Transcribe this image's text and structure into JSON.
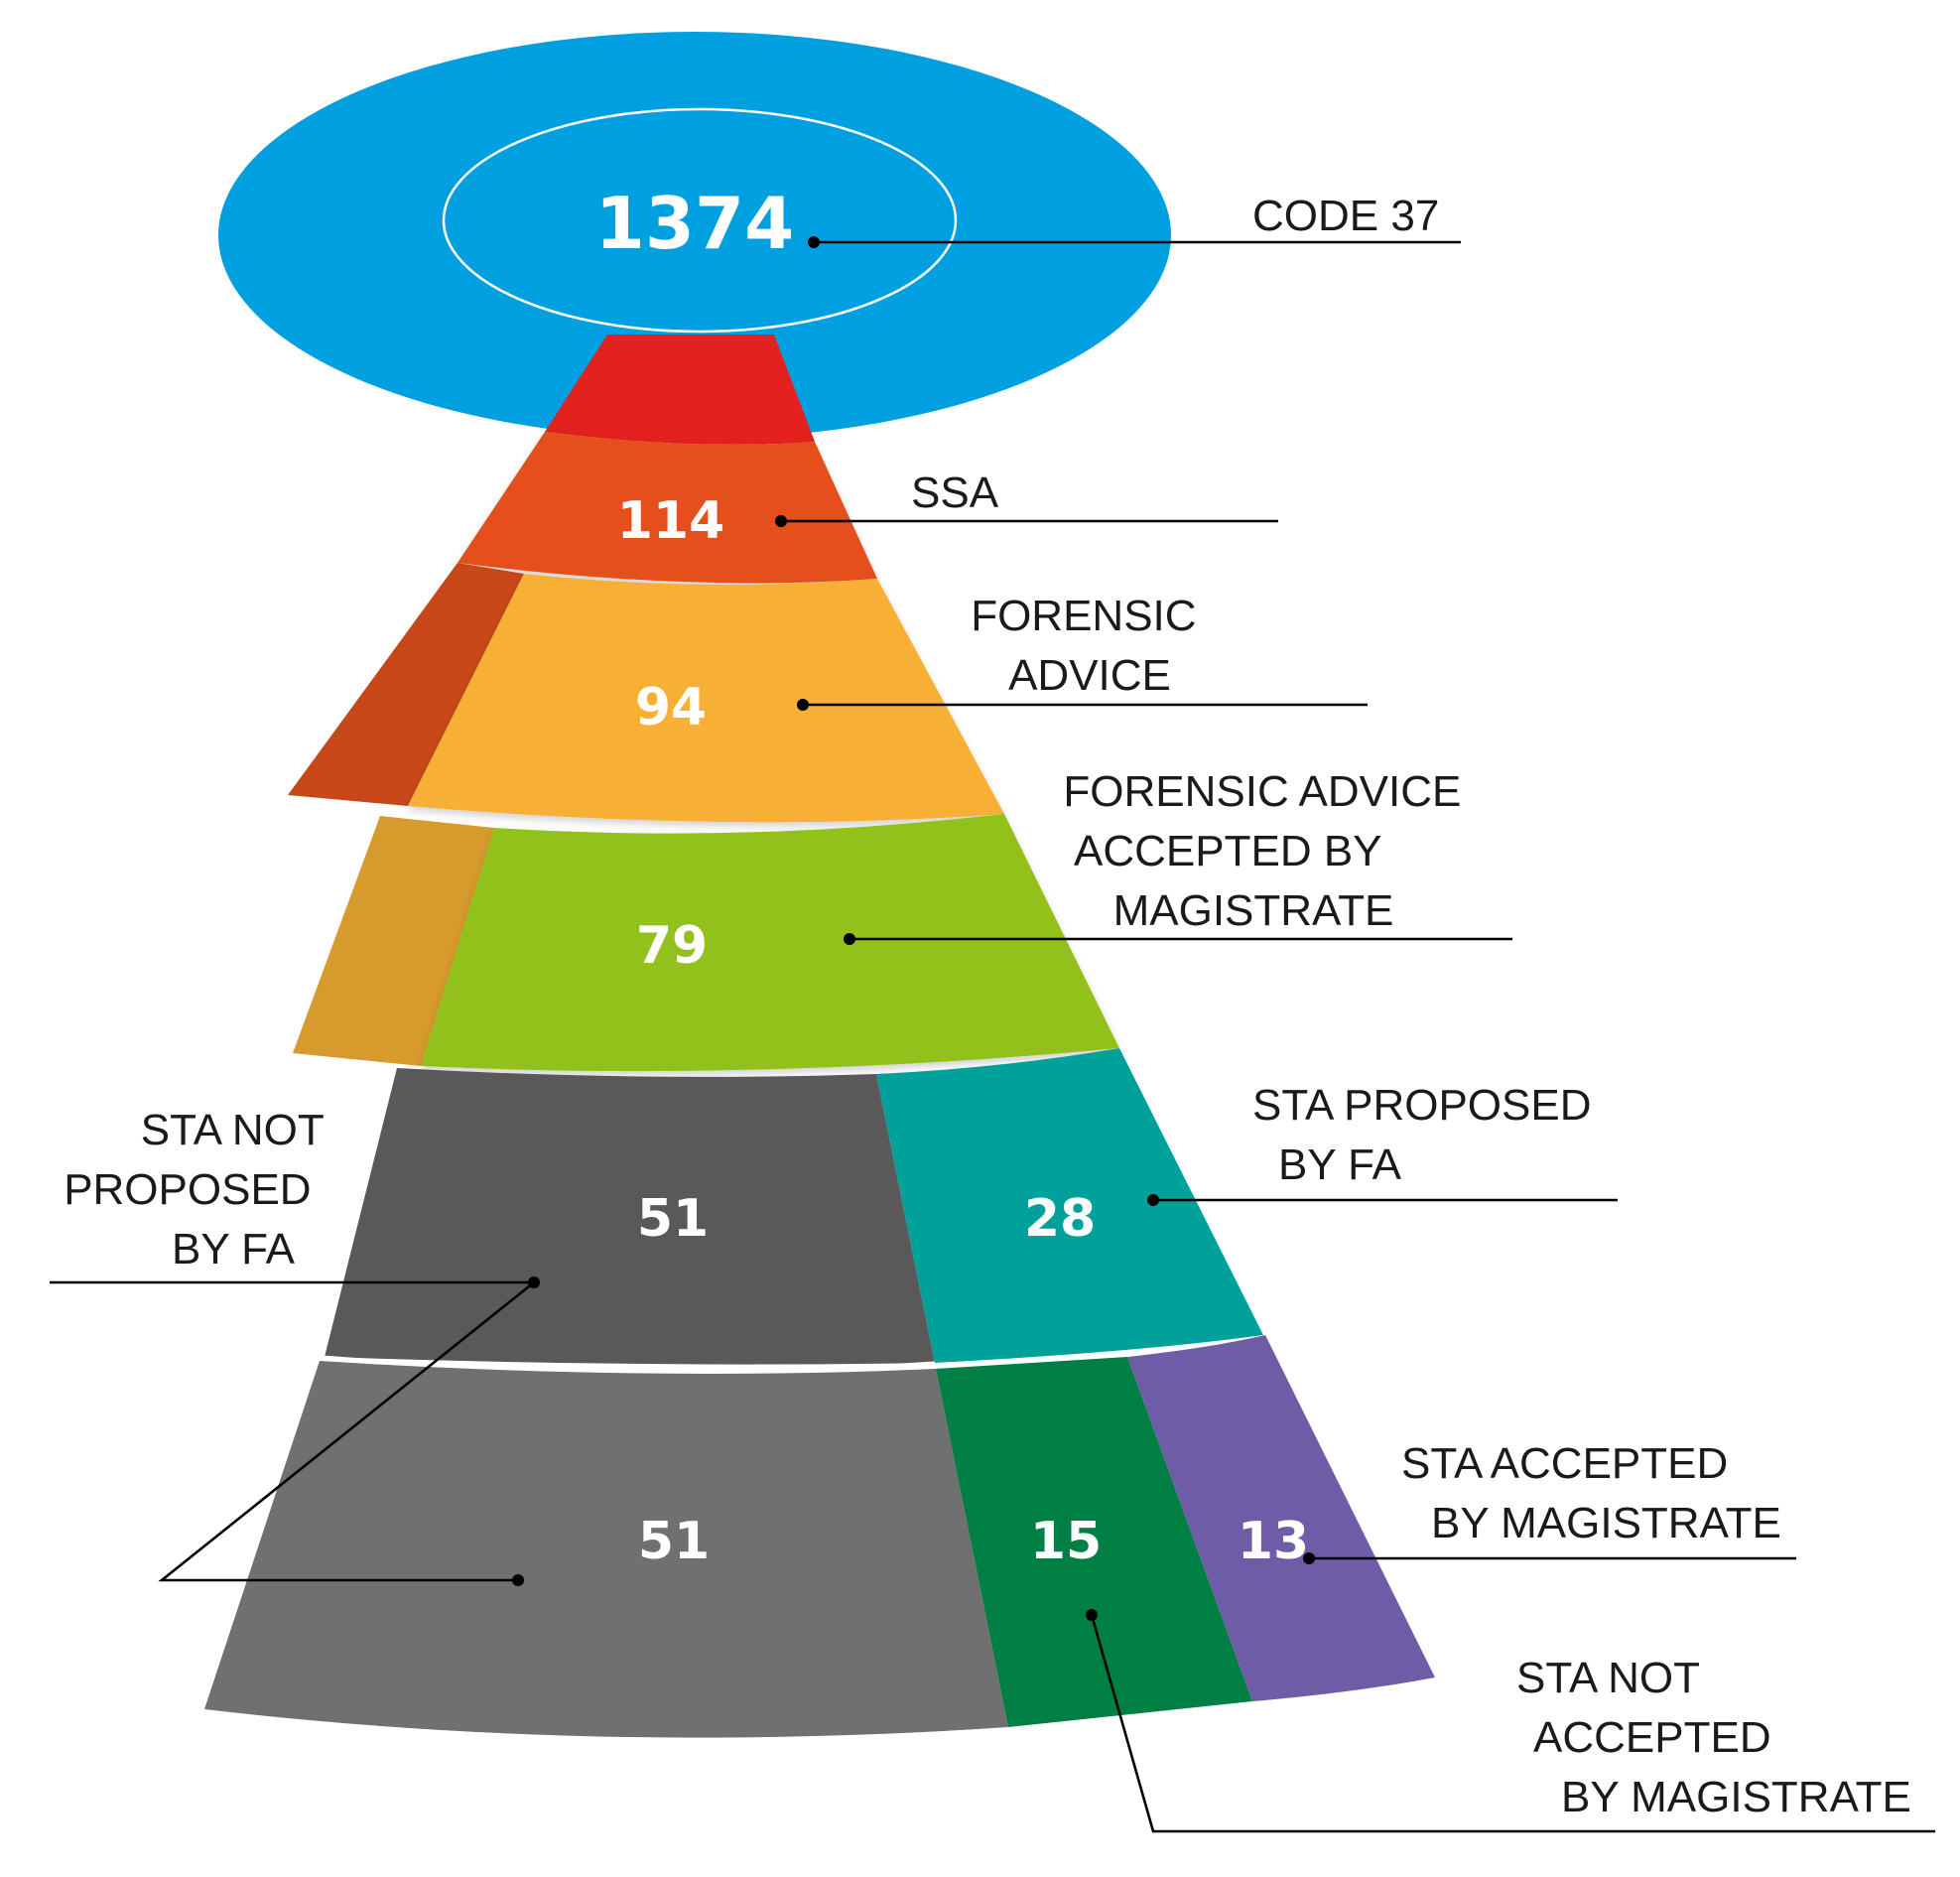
{
  "colors": {
    "code37": "#009FE0",
    "red_neck": "#E3211E",
    "ssa": "#E5501F",
    "ssa_shade": "#C84719",
    "forensic_advice": "#F8AF35",
    "forensic_shade": "#D79A2C",
    "accepted": "#92C11F",
    "sta_not_proposed": "#595959",
    "sta_proposed": "#00A19A",
    "sta_not_proposed_bottom": "#707070",
    "sta_not_accepted": "#007F45",
    "sta_accepted": "#6F5CA6"
  },
  "nodes": {
    "code37": {
      "value": "1374",
      "label": "CODE 37"
    },
    "ssa": {
      "value": "114",
      "label": "SSA"
    },
    "forensic_advice": {
      "value": "94",
      "label_lines": [
        "FORENSIC",
        "ADVICE"
      ]
    },
    "accepted": {
      "value": "79",
      "label_lines": [
        "FORENSIC ADVICE",
        "ACCEPTED BY",
        "MAGISTRATE"
      ]
    },
    "sta_not_proposed": {
      "value": "51",
      "label_lines": [
        "STA NOT",
        "PROPOSED",
        "BY FA"
      ]
    },
    "sta_proposed": {
      "value": "28",
      "label_lines": [
        "STA PROPOSED",
        "BY FA"
      ]
    },
    "sta_not_proposed_bottom": {
      "value": "51"
    },
    "sta_not_accepted": {
      "value": "15",
      "label_lines": [
        "STA NOT",
        "ACCEPTED",
        "BY MAGISTRATE"
      ]
    },
    "sta_accepted": {
      "value": "13",
      "label_lines": [
        "STA ACCEPTED",
        "BY MAGISTRATE"
      ]
    }
  }
}
